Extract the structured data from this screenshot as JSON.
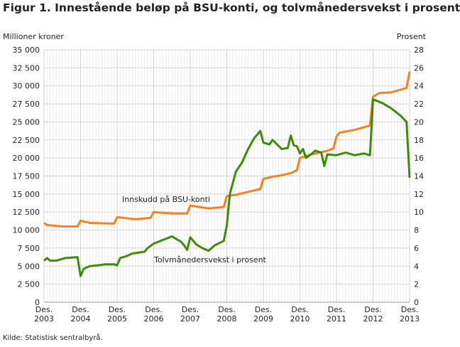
{
  "title": "Figur 1. Innestående beløp på BSU-konti, og tolvmånedersvekst i prosent",
  "source": "Kilde: Statistisk sentralbyrå.",
  "chart_data": {
    "type": "line",
    "ylabel_left": "Millioner kroner",
    "ylabel_right": "Prosent",
    "ylim_left": [
      0,
      35000
    ],
    "ylim_right": [
      0,
      28
    ],
    "yticks_left": [
      "0",
      "2 500",
      "5 000",
      "7 500",
      "10 000",
      "12 500",
      "15 000",
      "17 500",
      "20 000",
      "22 500",
      "25 000",
      "27 500",
      "30 000",
      "32 500",
      "35 000"
    ],
    "yticks_right": [
      "0",
      "2",
      "4",
      "6",
      "8",
      "10",
      "12",
      "14",
      "16",
      "18",
      "20",
      "22",
      "24",
      "26",
      "28"
    ],
    "xticks": [
      [
        "Des.",
        "2003"
      ],
      [
        "Des.",
        "2004"
      ],
      [
        "Des.",
        "2005"
      ],
      [
        "Des.",
        "2006"
      ],
      [
        "Des.",
        "2007"
      ],
      [
        "Des.",
        "2008"
      ],
      [
        "Des.",
        "2009"
      ],
      [
        "Des.",
        "2010"
      ],
      [
        "Des.",
        "2011"
      ],
      [
        "Des.",
        "2012"
      ],
      [
        "Des.",
        "2013"
      ]
    ],
    "xlim": [
      "2003-12",
      "2013-12"
    ],
    "grid": true,
    "series": [
      {
        "name": "Innskudd på BSU-konti",
        "axis": "left",
        "color": "#f58220",
        "points": [
          [
            "2003-12",
            11000
          ],
          [
            "2004-01",
            10700
          ],
          [
            "2004-06",
            10500
          ],
          [
            "2004-11",
            10500
          ],
          [
            "2004-12",
            11300
          ],
          [
            "2005-03",
            11000
          ],
          [
            "2005-11",
            10900
          ],
          [
            "2005-12",
            11800
          ],
          [
            "2006-06",
            11500
          ],
          [
            "2006-11",
            11700
          ],
          [
            "2006-12",
            12500
          ],
          [
            "2007-06",
            12300
          ],
          [
            "2007-11",
            12300
          ],
          [
            "2007-12",
            13400
          ],
          [
            "2008-06",
            13000
          ],
          [
            "2008-11",
            13200
          ],
          [
            "2008-12",
            14700
          ],
          [
            "2009-03",
            14900
          ],
          [
            "2009-06",
            15200
          ],
          [
            "2009-11",
            15700
          ],
          [
            "2009-12",
            17100
          ],
          [
            "2010-03",
            17400
          ],
          [
            "2010-06",
            17600
          ],
          [
            "2010-09",
            17900
          ],
          [
            "2010-11",
            18300
          ],
          [
            "2010-12",
            20000
          ],
          [
            "2011-03",
            20400
          ],
          [
            "2011-06",
            20700
          ],
          [
            "2011-09",
            21000
          ],
          [
            "2011-11",
            21300
          ],
          [
            "2011-12",
            23000
          ],
          [
            "2012-01",
            23500
          ],
          [
            "2012-06",
            23900
          ],
          [
            "2012-11",
            24500
          ],
          [
            "2012-12",
            28500
          ],
          [
            "2013-02",
            29000
          ],
          [
            "2013-06",
            29100
          ],
          [
            "2013-11",
            29700
          ],
          [
            "2013-12",
            32000
          ]
        ]
      },
      {
        "name": "Tolvmånedersvekst i prosent",
        "axis": "right",
        "color": "#3f8a0a",
        "points": [
          [
            "2003-12",
            4.6
          ],
          [
            "2004-01",
            4.9
          ],
          [
            "2004-02",
            4.6
          ],
          [
            "2004-04",
            4.6
          ],
          [
            "2004-07",
            4.9
          ],
          [
            "2004-11",
            5.0
          ],
          [
            "2004-12",
            2.9
          ],
          [
            "2005-01",
            3.7
          ],
          [
            "2005-03",
            4.0
          ],
          [
            "2005-06",
            4.1
          ],
          [
            "2005-08",
            4.2
          ],
          [
            "2005-11",
            4.2
          ],
          [
            "2005-12",
            4.1
          ],
          [
            "2006-01",
            4.9
          ],
          [
            "2006-03",
            5.1
          ],
          [
            "2006-05",
            5.4
          ],
          [
            "2006-09",
            5.6
          ],
          [
            "2006-10",
            6.0
          ],
          [
            "2006-12",
            6.5
          ],
          [
            "2007-03",
            6.9
          ],
          [
            "2007-06",
            7.3
          ],
          [
            "2007-09",
            6.7
          ],
          [
            "2007-10",
            6.3
          ],
          [
            "2007-11",
            5.8
          ],
          [
            "2007-12",
            7.2
          ],
          [
            "2008-02",
            6.4
          ],
          [
            "2008-04",
            6.0
          ],
          [
            "2008-06",
            5.7
          ],
          [
            "2008-08",
            6.3
          ],
          [
            "2008-11",
            6.8
          ],
          [
            "2008-12",
            8.5
          ],
          [
            "2009-01",
            12.0
          ],
          [
            "2009-03",
            14.5
          ],
          [
            "2009-05",
            15.5
          ],
          [
            "2009-07",
            17.0
          ],
          [
            "2009-09",
            18.2
          ],
          [
            "2009-11",
            19.0
          ],
          [
            "2009-12",
            17.7
          ],
          [
            "2010-02",
            17.5
          ],
          [
            "2010-03",
            18.0
          ],
          [
            "2010-06",
            17.0
          ],
          [
            "2010-08",
            17.1
          ],
          [
            "2010-09",
            18.5
          ],
          [
            "2010-10",
            17.4
          ],
          [
            "2010-11",
            17.3
          ],
          [
            "2010-12",
            16.5
          ],
          [
            "2011-01",
            17.0
          ],
          [
            "2011-02",
            16.0
          ],
          [
            "2011-04",
            16.5
          ],
          [
            "2011-05",
            16.8
          ],
          [
            "2011-07",
            16.6
          ],
          [
            "2011-08",
            15.1
          ],
          [
            "2011-09",
            16.4
          ],
          [
            "2011-12",
            16.3
          ],
          [
            "2012-03",
            16.6
          ],
          [
            "2012-06",
            16.3
          ],
          [
            "2012-09",
            16.5
          ],
          [
            "2012-11",
            16.3
          ],
          [
            "2012-12",
            22.5
          ],
          [
            "2013-03",
            22.1
          ],
          [
            "2013-06",
            21.5
          ],
          [
            "2013-09",
            20.7
          ],
          [
            "2013-11",
            20.0
          ],
          [
            "2013-12",
            13.8
          ]
        ]
      }
    ]
  }
}
